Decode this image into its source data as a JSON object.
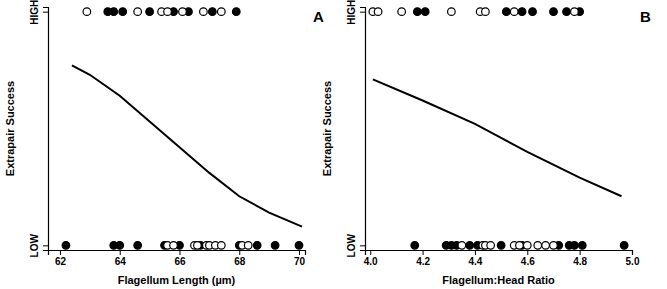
{
  "chart_data": [
    {
      "type": "scatter",
      "title": "A",
      "x_label": "Flagellum Length (µm)",
      "y_label": "Extrapair Success",
      "xlim": [
        61.6,
        70.2
      ],
      "xticks": [
        62,
        64,
        66,
        68,
        70
      ],
      "ylim": [
        -0.02,
        1.02
      ],
      "yticks": [
        {
          "value": 0,
          "label": "LOW"
        },
        {
          "value": 1,
          "label": "HIGH"
        }
      ],
      "series": [
        {
          "type": "scatter",
          "marker": "filled-circle",
          "color": "#000000",
          "x": [
            63.6,
            63.8,
            64.1,
            65.0,
            65.8,
            66.3,
            67.1,
            67.9,
            62.2,
            63.8,
            64.0,
            64.6,
            65.5,
            66.0,
            66.7,
            68.0,
            68.6,
            69.2,
            70.0
          ],
          "values": [
            1,
            1,
            1,
            1,
            1,
            1,
            1,
            1,
            0,
            0,
            0,
            0,
            0,
            0,
            0,
            0,
            0,
            0,
            0
          ]
        },
        {
          "type": "scatter",
          "marker": "open-circle",
          "color": "#000000",
          "x": [
            62.9,
            64.6,
            65.4,
            65.6,
            66.1,
            66.8,
            67.4,
            65.6,
            65.8,
            66.5,
            66.6,
            66.9,
            67.0,
            67.2,
            67.4,
            68.1,
            68.3
          ],
          "values": [
            1,
            1,
            1,
            1,
            1,
            1,
            1,
            0,
            0,
            0,
            0,
            0,
            0,
            0,
            0,
            0,
            0
          ]
        },
        {
          "type": "line",
          "color": "#000000",
          "x": [
            62.4,
            63,
            64,
            65,
            66,
            67,
            68,
            69,
            70.1
          ],
          "values": [
            0.77,
            0.73,
            0.64,
            0.53,
            0.42,
            0.31,
            0.21,
            0.14,
            0.08
          ]
        }
      ]
    },
    {
      "type": "scatter",
      "title": "B",
      "x_label": "Flagellum:Head Ratio",
      "y_label": "Extrapair Success",
      "xlim": [
        3.98,
        5.0
      ],
      "xticks": [
        {
          "value": 4,
          "label": "4.0"
        },
        4.2,
        4.4,
        4.6,
        4.8,
        {
          "value": 5,
          "label": "5.0"
        }
      ],
      "ylim": [
        -0.02,
        1.02
      ],
      "yticks": [
        {
          "value": 0,
          "label": "LOW"
        },
        {
          "value": 1,
          "label": "HIGH"
        }
      ],
      "series": [
        {
          "type": "scatter",
          "marker": "filled-circle",
          "color": "#000000",
          "x": [
            4.18,
            4.21,
            4.52,
            4.58,
            4.62,
            4.7,
            4.75,
            4.8,
            4.17,
            4.29,
            4.31,
            4.33,
            4.38,
            4.41,
            4.5,
            4.58,
            4.72,
            4.76,
            4.78,
            4.81,
            4.97
          ],
          "values": [
            1,
            1,
            1,
            1,
            1,
            1,
            1,
            1,
            0,
            0,
            0,
            0,
            0,
            0,
            0,
            0,
            0,
            0,
            0,
            0,
            0
          ]
        },
        {
          "type": "scatter",
          "marker": "open-circle",
          "color": "#000000",
          "x": [
            4.01,
            4.03,
            4.12,
            4.31,
            4.42,
            4.44,
            4.55,
            4.78,
            4.35,
            4.43,
            4.44,
            4.46,
            4.55,
            4.57,
            4.6,
            4.64,
            4.67,
            4.7
          ],
          "values": [
            1,
            1,
            1,
            1,
            1,
            1,
            1,
            1,
            0,
            0,
            0,
            0,
            0,
            0,
            0,
            0,
            0,
            0
          ]
        },
        {
          "type": "line",
          "color": "#000000",
          "x": [
            4.01,
            4.2,
            4.4,
            4.6,
            4.8,
            4.96
          ],
          "values": [
            0.71,
            0.62,
            0.52,
            0.4,
            0.29,
            0.21
          ]
        }
      ]
    }
  ]
}
